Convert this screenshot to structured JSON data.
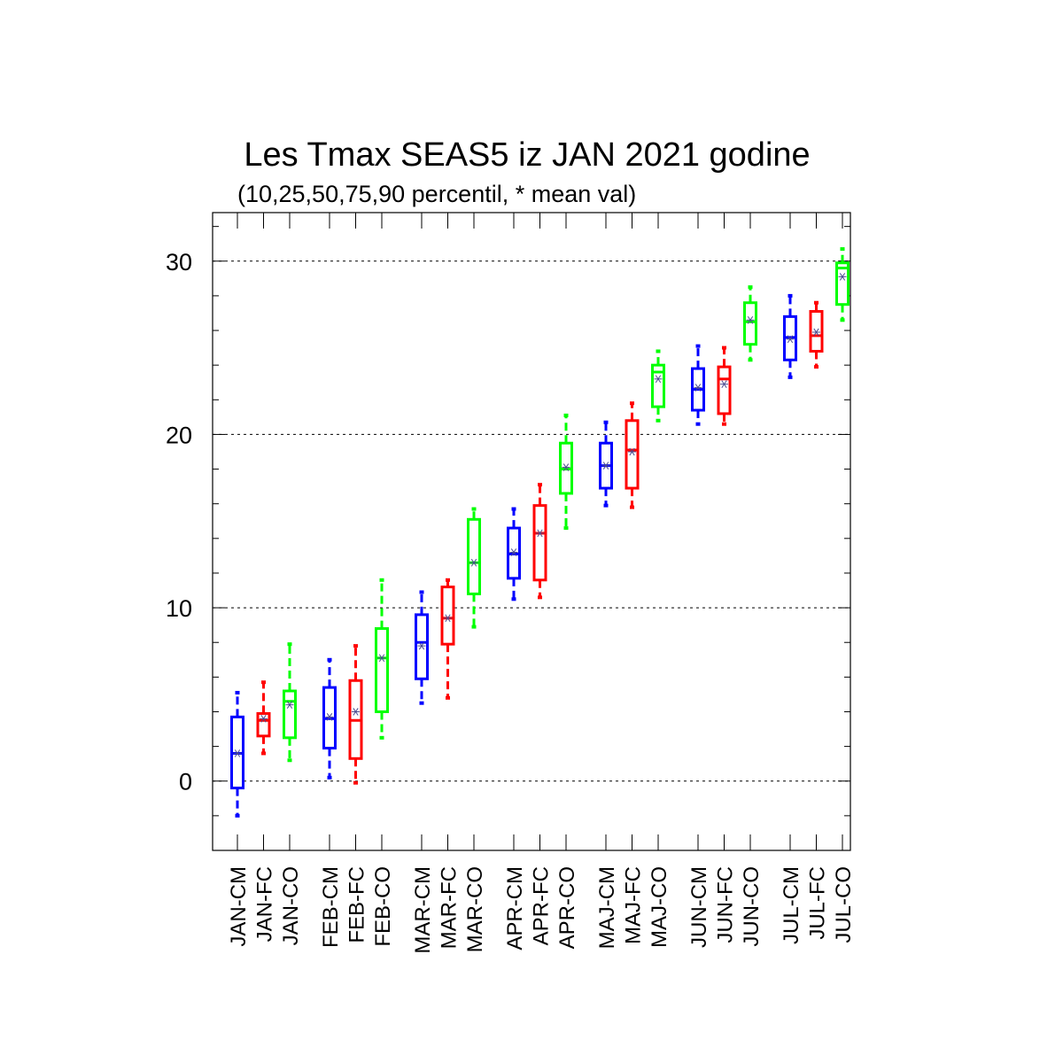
{
  "chart_data": {
    "type": "box",
    "title": "Les Tmax SEAS5 iz JAN 2021 godine",
    "subtitle": "(10,25,50,75,90 percentil, * mean val)",
    "xlabel": "",
    "ylabel": "",
    "ylim": [
      -4,
      32.8
    ],
    "y_ticks": [
      0,
      10,
      20,
      30
    ],
    "y_tick_labels": [
      "0",
      "10",
      "20",
      "30"
    ],
    "grid": "horizontal dashed at major ticks",
    "colors": {
      "CM": "#0000ff",
      "FC": "#ff0000",
      "CO": "#00ff00",
      "mean_marker": "#4b4b8f",
      "axis": "#000000",
      "grid": "#000000"
    },
    "boxes": [
      {
        "label": "JAN-CM",
        "group": "CM",
        "p10": -2.0,
        "p25": -0.4,
        "median": 1.6,
        "p75": 3.7,
        "p90": 5.1,
        "mean": 1.6
      },
      {
        "label": "JAN-FC",
        "group": "FC",
        "p10": 1.6,
        "p25": 2.6,
        "median": 3.5,
        "p75": 3.9,
        "p90": 5.7,
        "mean": 3.6
      },
      {
        "label": "JAN-CO",
        "group": "CO",
        "p10": 1.2,
        "p25": 2.5,
        "median": 4.6,
        "p75": 5.2,
        "p90": 7.9,
        "mean": 4.4
      },
      {
        "label": "FEB-CM",
        "group": "CM",
        "p10": 0.2,
        "p25": 1.9,
        "median": 3.6,
        "p75": 5.4,
        "p90": 7.0,
        "mean": 3.7
      },
      {
        "label": "FEB-FC",
        "group": "FC",
        "p10": -0.1,
        "p25": 1.3,
        "median": 3.5,
        "p75": 5.8,
        "p90": 7.8,
        "mean": 4.0
      },
      {
        "label": "FEB-CO",
        "group": "CO",
        "p10": 2.5,
        "p25": 4.0,
        "median": 7.1,
        "p75": 8.8,
        "p90": 11.6,
        "mean": 7.1
      },
      {
        "label": "MAR-CM",
        "group": "CM",
        "p10": 4.5,
        "p25": 5.9,
        "median": 8.0,
        "p75": 9.6,
        "p90": 10.9,
        "mean": 7.8
      },
      {
        "label": "MAR-FC",
        "group": "FC",
        "p10": 4.8,
        "p25": 7.9,
        "median": 9.4,
        "p75": 11.2,
        "p90": 11.6,
        "mean": 9.4
      },
      {
        "label": "MAR-CO",
        "group": "CO",
        "p10": 8.9,
        "p25": 10.8,
        "median": 12.6,
        "p75": 15.1,
        "p90": 15.7,
        "mean": 12.6
      },
      {
        "label": "APR-CM",
        "group": "CM",
        "p10": 10.5,
        "p25": 11.7,
        "median": 13.1,
        "p75": 14.6,
        "p90": 15.7,
        "mean": 13.2
      },
      {
        "label": "APR-FC",
        "group": "FC",
        "p10": 10.6,
        "p25": 11.6,
        "median": 14.3,
        "p75": 15.9,
        "p90": 17.1,
        "mean": 14.3
      },
      {
        "label": "APR-CO",
        "group": "CO",
        "p10": 14.6,
        "p25": 16.6,
        "median": 18.0,
        "p75": 19.5,
        "p90": 21.1,
        "mean": 18.1
      },
      {
        "label": "MAJ-CM",
        "group": "CM",
        "p10": 15.9,
        "p25": 16.9,
        "median": 18.2,
        "p75": 19.5,
        "p90": 20.7,
        "mean": 18.2
      },
      {
        "label": "MAJ-FC",
        "group": "FC",
        "p10": 15.8,
        "p25": 16.9,
        "median": 19.1,
        "p75": 20.8,
        "p90": 21.8,
        "mean": 19.0
      },
      {
        "label": "MAJ-CO",
        "group": "CO",
        "p10": 20.8,
        "p25": 21.6,
        "median": 23.6,
        "p75": 24.0,
        "p90": 24.8,
        "mean": 23.2
      },
      {
        "label": "JUN-CM",
        "group": "CM",
        "p10": 20.6,
        "p25": 21.4,
        "median": 22.6,
        "p75": 23.8,
        "p90": 25.1,
        "mean": 22.7
      },
      {
        "label": "JUN-FC",
        "group": "FC",
        "p10": 20.6,
        "p25": 21.2,
        "median": 23.2,
        "p75": 23.9,
        "p90": 25.0,
        "mean": 22.9
      },
      {
        "label": "JUN-CO",
        "group": "CO",
        "p10": 24.3,
        "p25": 25.2,
        "median": 26.5,
        "p75": 27.6,
        "p90": 28.5,
        "mean": 26.6
      },
      {
        "label": "JUL-CM",
        "group": "CM",
        "p10": 23.3,
        "p25": 24.3,
        "median": 25.6,
        "p75": 26.8,
        "p90": 28.0,
        "mean": 25.5
      },
      {
        "label": "JUL-FC",
        "group": "FC",
        "p10": 23.9,
        "p25": 24.8,
        "median": 25.7,
        "p75": 27.1,
        "p90": 27.6,
        "mean": 25.9
      },
      {
        "label": "JUL-CO",
        "group": "CO",
        "p10": 26.6,
        "p25": 27.5,
        "median": 29.6,
        "p75": 29.9,
        "p90": 30.7,
        "mean": 29.1
      }
    ]
  }
}
